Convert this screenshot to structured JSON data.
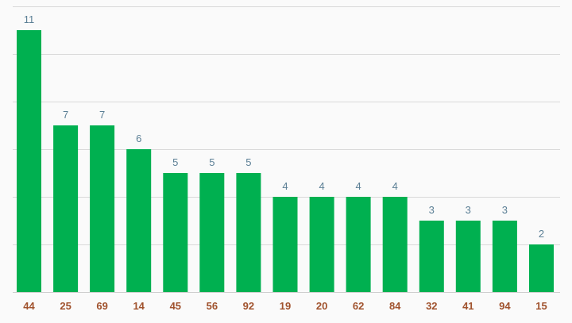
{
  "chart_data": {
    "type": "bar",
    "title": "",
    "xlabel": "",
    "ylabel": "",
    "categories": [
      "44",
      "25",
      "69",
      "14",
      "45",
      "56",
      "92",
      "19",
      "20",
      "62",
      "84",
      "32",
      "41",
      "94",
      "15"
    ],
    "values": [
      11,
      7,
      7,
      6,
      5,
      5,
      5,
      4,
      4,
      4,
      4,
      3,
      3,
      3,
      2
    ],
    "ylim": [
      0,
      12
    ],
    "ytick_step": 2,
    "grid": true,
    "data_labels": true,
    "colors": {
      "bar": "#00b050",
      "value_label": "#5b7f95",
      "category_label": "#a0522d",
      "grid": "#d9d9d9",
      "background": "#fafafa"
    }
  }
}
